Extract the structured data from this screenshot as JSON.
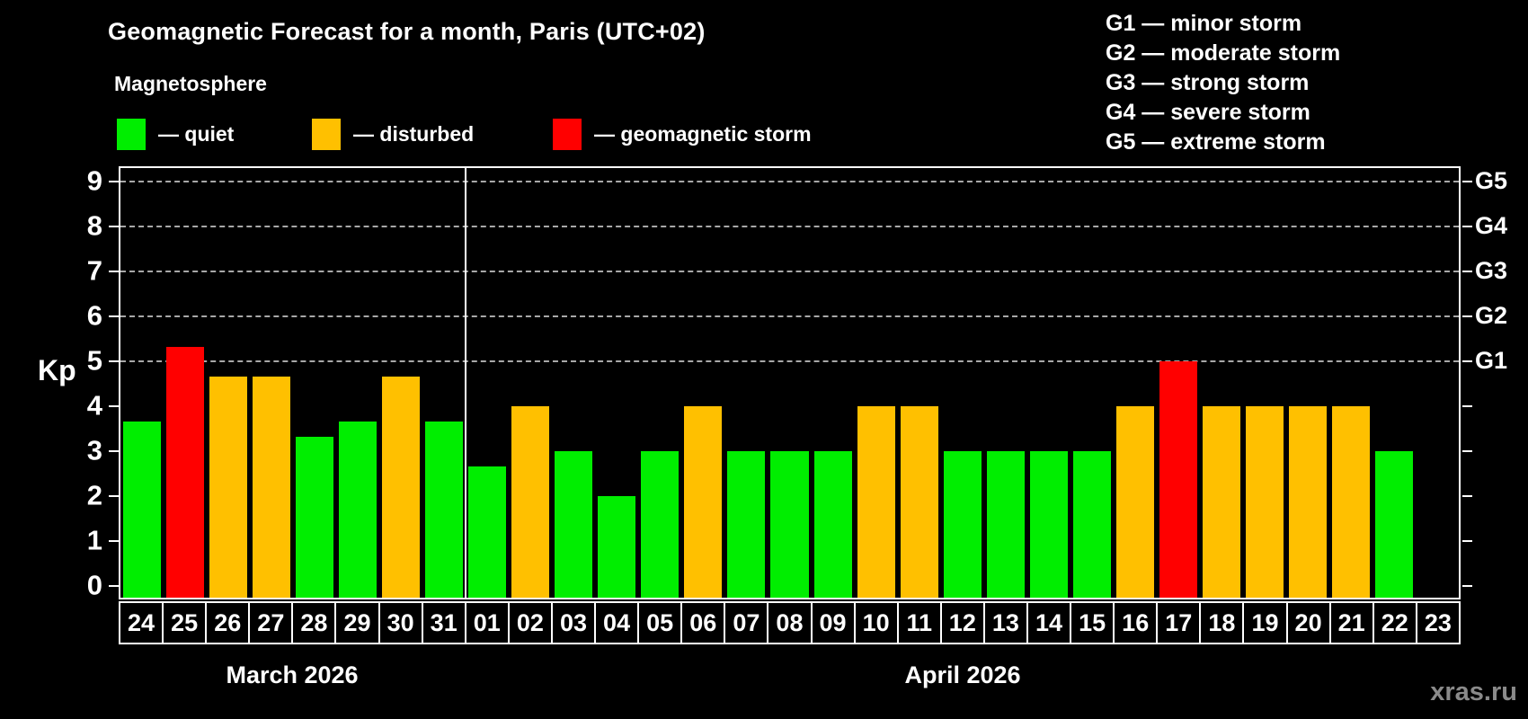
{
  "title": "Geomagnetic Forecast for a month, Paris (UTC+02)",
  "subtitle": "Magnetosphere",
  "legend": [
    {
      "key": "quiet",
      "label": "— quiet",
      "color": "#00ee00"
    },
    {
      "key": "disturbed",
      "label": "— disturbed",
      "color": "#ffc000"
    },
    {
      "key": "storm",
      "label": "— geomagnetic storm",
      "color": "#ff0000"
    }
  ],
  "g_scale_legend": [
    "G1 — minor storm",
    "G2 — moderate storm",
    "G3 — strong storm",
    "G4 — severe storm",
    "G5 — extreme storm"
  ],
  "y_axis": {
    "label": "Kp",
    "ticks": [
      0,
      1,
      2,
      3,
      4,
      5,
      6,
      7,
      8,
      9
    ]
  },
  "right_axis_labels": [
    {
      "kp": 5,
      "label": "G1"
    },
    {
      "kp": 6,
      "label": "G2"
    },
    {
      "kp": 7,
      "label": "G3"
    },
    {
      "kp": 8,
      "label": "G4"
    },
    {
      "kp": 9,
      "label": "G5"
    }
  ],
  "months": [
    {
      "label": "March 2026",
      "days": 8
    },
    {
      "label": "April 2026",
      "days": 23
    }
  ],
  "watermark": "xras.ru",
  "chart_data": {
    "type": "bar",
    "title": "Geomagnetic Forecast for a month, Paris (UTC+02)",
    "xlabel": "",
    "ylabel": "Kp",
    "ylim": [
      0,
      9.3
    ],
    "grid": "dashed horizontal lines at Kp 5-9 only",
    "legend_position": "top-left (status colors), top-right (G scale)",
    "gridlines_kp": [
      5,
      6,
      7,
      8,
      9
    ],
    "categories": [
      "24",
      "25",
      "26",
      "27",
      "28",
      "29",
      "30",
      "31",
      "01",
      "02",
      "03",
      "04",
      "05",
      "06",
      "07",
      "08",
      "09",
      "10",
      "11",
      "12",
      "13",
      "14",
      "15",
      "16",
      "17",
      "18",
      "19",
      "20",
      "21",
      "22",
      "23"
    ],
    "values": [
      3.67,
      5.33,
      4.67,
      4.67,
      3.33,
      3.67,
      4.67,
      3.67,
      2.67,
      4,
      3,
      2,
      3,
      4,
      3,
      3,
      3,
      4,
      4,
      3,
      3,
      3,
      3,
      4,
      5,
      4,
      4,
      4,
      4,
      3,
      0
    ],
    "statuses": [
      "quiet",
      "storm",
      "disturbed",
      "disturbed",
      "quiet",
      "quiet",
      "disturbed",
      "quiet",
      "quiet",
      "disturbed",
      "quiet",
      "quiet",
      "quiet",
      "disturbed",
      "quiet",
      "quiet",
      "quiet",
      "disturbed",
      "disturbed",
      "quiet",
      "quiet",
      "quiet",
      "quiet",
      "disturbed",
      "storm",
      "disturbed",
      "disturbed",
      "disturbed",
      "disturbed",
      "quiet",
      "none"
    ]
  }
}
